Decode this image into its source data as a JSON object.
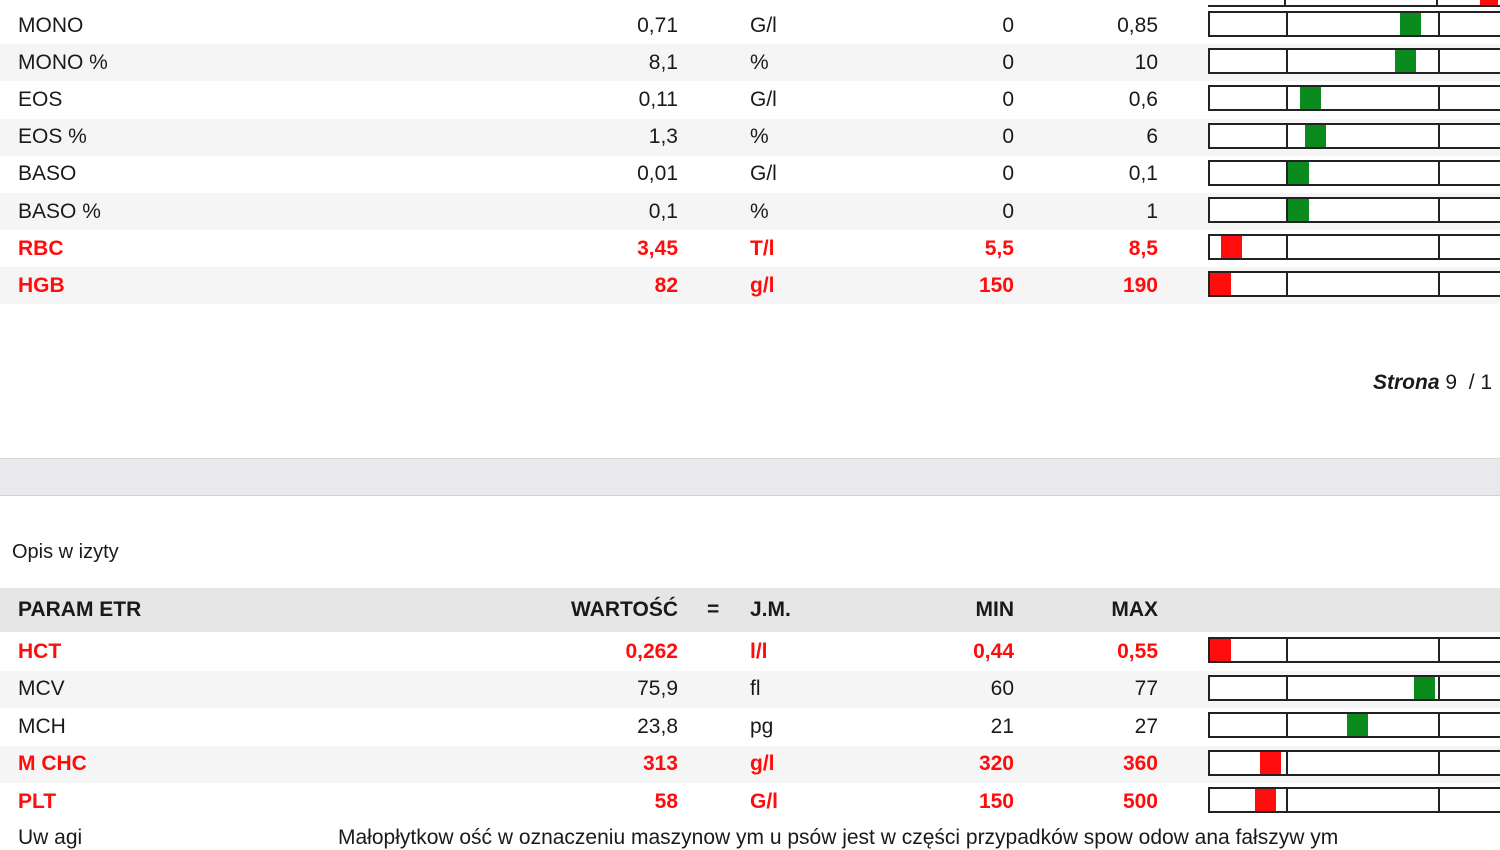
{
  "colors": {
    "normal_marker": "#0b8a1e",
    "abnormal": "#ff0d0d",
    "header_bg": "#e6e6e6"
  },
  "rows_top": [
    {
      "name": "MONO",
      "value": "0,71",
      "unit": "G/l",
      "min": "0",
      "max": "0,85",
      "abnormal": false,
      "level": 0.68
    },
    {
      "name": "MONO %",
      "value": "8,1",
      "unit": "%",
      "min": "0",
      "max": "10",
      "abnormal": false,
      "level": 0.66
    },
    {
      "name": "EOS",
      "value": "0,11",
      "unit": "G/l",
      "min": "0",
      "max": "0,6",
      "abnormal": false,
      "level": 0.32
    },
    {
      "name": "EOS %",
      "value": "1,3",
      "unit": "%",
      "min": "0",
      "max": "6",
      "abnormal": false,
      "level": 0.34
    },
    {
      "name": "BASO",
      "value": "0,01",
      "unit": "G/l",
      "min": "0",
      "max": "0,1",
      "abnormal": false,
      "level": 0.28
    },
    {
      "name": "BASO %",
      "value": "0,1",
      "unit": "%",
      "min": "0",
      "max": "1",
      "abnormal": false,
      "level": 0.28
    },
    {
      "name": "RBC",
      "value": "3,45",
      "unit": "T/l",
      "min": "5,5",
      "max": "8,5",
      "abnormal": true,
      "level": 0.04
    },
    {
      "name": "HGB",
      "value": "82",
      "unit": "g/l",
      "min": "150",
      "max": "190",
      "abnormal": true,
      "level": 0.0
    }
  ],
  "page": {
    "label": "Strona",
    "number": "9",
    "sep": "/ 1"
  },
  "visit_description": "Opis w izyty",
  "header": {
    "param": "PARAM ETR",
    "value": "WARTOŚĆ",
    "eq": "=",
    "unit": "J.M.",
    "min": "MIN",
    "max": "MAX"
  },
  "rows_bottom": [
    {
      "name": "HCT",
      "value": "0,262",
      "unit": "l/l",
      "min": "0,44",
      "max": "0,55",
      "abnormal": true,
      "level": 0.0
    },
    {
      "name": "MCV",
      "value": "75,9",
      "unit": "fl",
      "min": "60",
      "max": "77",
      "abnormal": false,
      "level": 0.73
    },
    {
      "name": "MCH",
      "value": "23,8",
      "unit": "pg",
      "min": "21",
      "max": "27",
      "abnormal": false,
      "level": 0.49
    },
    {
      "name": "M CHC",
      "value": "313",
      "unit": "g/l",
      "min": "320",
      "max": "360",
      "abnormal": true,
      "level": 0.18
    },
    {
      "name": "PLT",
      "value": "58",
      "unit": "G/l",
      "min": "150",
      "max": "500",
      "abnormal": true,
      "level": 0.16
    }
  ],
  "remarks": {
    "label": "Uw agi",
    "text": "Małopłytkow ość w oznaczeniu maszynow ym u psów jest w części przypadków spow odow ana fałszyw ym"
  }
}
